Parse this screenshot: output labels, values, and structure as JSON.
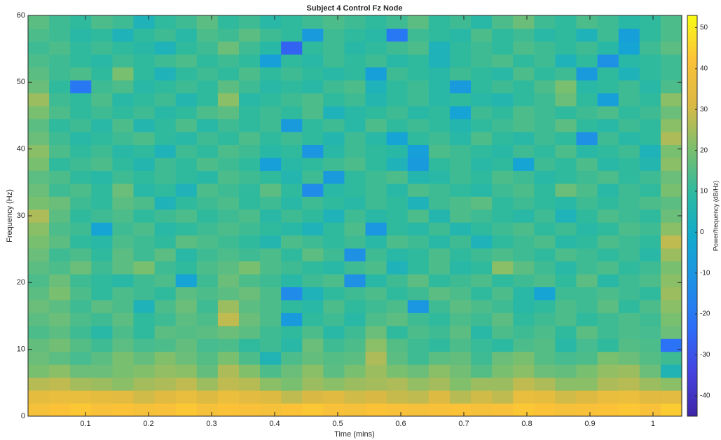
{
  "chart_data": {
    "type": "heatmap",
    "title": "Subject 4 Control Fz Node",
    "x_label": "Time (mins)",
    "y_label": "Frequency (Hz)",
    "colorbar_label": "Power/frequency (dB/Hz)",
    "xlim": [
      0.0089,
      1.0456
    ],
    "ylim": [
      0,
      60
    ],
    "xticks": [
      0.1,
      0.2,
      0.3,
      0.4,
      0.5,
      0.6,
      0.7,
      0.8,
      0.9,
      1
    ],
    "yticks": [
      0,
      10,
      20,
      30,
      40,
      50,
      60
    ],
    "clim": [
      -45,
      53
    ],
    "cticks": [
      -40,
      -30,
      -20,
      -10,
      0,
      10,
      20,
      30,
      40,
      50
    ],
    "colormap": [
      "#3e26a8",
      "#4543e0",
      "#2d6ef8",
      "#1e90e6",
      "#12aacf",
      "#2cbaa0",
      "#7bbf6e",
      "#dbb943",
      "#fbc238",
      "#f9fb15"
    ],
    "z": [
      [
        40,
        42,
        43,
        41,
        42,
        40,
        41,
        43,
        40,
        42,
        41,
        40,
        42,
        43,
        41,
        40,
        42,
        41,
        40,
        41,
        42,
        40,
        41,
        43,
        42,
        40,
        41,
        42,
        43,
        41,
        44
      ],
      [
        35,
        36,
        36,
        35,
        34,
        30,
        33,
        36,
        32,
        37,
        34,
        32,
        28,
        31,
        33,
        30,
        31,
        29,
        28,
        32,
        27,
        30,
        28,
        36,
        35,
        30,
        32,
        36,
        37,
        33,
        34
      ],
      [
        27,
        28,
        25,
        24,
        22,
        25,
        26,
        28,
        24,
        28,
        27,
        22,
        20,
        24,
        22,
        24,
        25,
        26,
        23,
        25,
        21,
        24,
        24,
        28,
        26,
        22,
        22,
        26,
        27,
        24,
        22
      ],
      [
        20,
        22,
        18,
        18,
        20,
        21,
        23,
        22,
        17,
        26,
        21,
        14,
        18,
        22,
        16,
        20,
        24,
        20,
        18,
        22,
        19,
        15,
        20,
        22,
        18,
        17,
        20,
        23,
        24,
        18,
        5
      ],
      [
        18,
        16,
        13,
        16,
        20,
        17,
        21,
        18,
        15,
        20,
        14,
        5,
        14,
        17,
        15,
        16,
        26,
        16,
        12,
        16,
        17,
        12,
        18,
        20,
        15,
        13,
        14,
        20,
        18,
        15,
        12
      ],
      [
        17,
        19,
        15,
        12,
        16,
        13,
        14,
        17,
        13,
        14,
        10,
        12,
        8,
        18,
        12,
        14,
        22,
        15,
        12,
        10,
        14,
        11,
        9,
        14,
        15,
        8,
        13,
        10,
        15,
        14,
        -22
      ],
      [
        14,
        16,
        12,
        8,
        14,
        10,
        16,
        15,
        16,
        18,
        16,
        12,
        10,
        14,
        8,
        12,
        18,
        10,
        14,
        12,
        16,
        8,
        14,
        12,
        14,
        10,
        16,
        12,
        14,
        13,
        18
      ],
      [
        16,
        18,
        14,
        12,
        16,
        10,
        12,
        16,
        14,
        28,
        18,
        14,
        -8,
        10,
        12,
        8,
        14,
        16,
        12,
        10,
        14,
        12,
        16,
        10,
        12,
        14,
        10,
        12,
        14,
        12,
        20
      ],
      [
        18,
        16,
        12,
        16,
        14,
        4,
        14,
        18,
        12,
        24,
        16,
        14,
        10,
        8,
        14,
        10,
        12,
        14,
        -10,
        12,
        16,
        14,
        12,
        8,
        10,
        14,
        12,
        16,
        10,
        14,
        22
      ],
      [
        16,
        20,
        14,
        10,
        14,
        12,
        10,
        16,
        14,
        16,
        18,
        14,
        -14,
        4,
        10,
        12,
        14,
        10,
        12,
        16,
        14,
        10,
        14,
        8,
        -4,
        12,
        12,
        14,
        12,
        10,
        24
      ],
      [
        14,
        18,
        12,
        10,
        8,
        12,
        14,
        -4,
        12,
        18,
        14,
        12,
        8,
        12,
        14,
        -12,
        8,
        12,
        16,
        10,
        12,
        14,
        10,
        12,
        14,
        10,
        16,
        8,
        12,
        14,
        22
      ],
      [
        16,
        14,
        18,
        12,
        16,
        20,
        12,
        10,
        14,
        16,
        20,
        14,
        12,
        10,
        8,
        12,
        14,
        4,
        10,
        14,
        8,
        10,
        22,
        16,
        12,
        8,
        12,
        14,
        10,
        12,
        20
      ],
      [
        18,
        12,
        14,
        10,
        16,
        12,
        16,
        8,
        12,
        14,
        12,
        14,
        10,
        16,
        12,
        -12,
        12,
        8,
        10,
        14,
        10,
        12,
        14,
        12,
        10,
        14,
        12,
        10,
        12,
        8,
        24
      ],
      [
        20,
        16,
        10,
        8,
        14,
        12,
        10,
        16,
        14,
        12,
        10,
        6,
        14,
        12,
        10,
        12,
        8,
        14,
        12,
        8,
        12,
        4,
        10,
        12,
        14,
        8,
        10,
        14,
        12,
        10,
        28
      ],
      [
        22,
        14,
        12,
        -4,
        12,
        14,
        8,
        10,
        12,
        14,
        12,
        10,
        8,
        4,
        10,
        14,
        -10,
        10,
        8,
        12,
        6,
        10,
        12,
        14,
        10,
        12,
        8,
        10,
        14,
        12,
        22
      ],
      [
        26,
        16,
        10,
        12,
        14,
        10,
        12,
        14,
        10,
        12,
        14,
        8,
        12,
        10,
        4,
        12,
        8,
        10,
        14,
        6,
        14,
        12,
        10,
        8,
        12,
        4,
        10,
        14,
        12,
        10,
        18
      ],
      [
        20,
        18,
        12,
        10,
        16,
        14,
        4,
        10,
        12,
        14,
        10,
        12,
        8,
        12,
        10,
        8,
        12,
        10,
        4,
        12,
        14,
        16,
        10,
        12,
        10,
        8,
        12,
        10,
        12,
        14,
        16
      ],
      [
        18,
        12,
        14,
        10,
        18,
        8,
        10,
        4,
        14,
        12,
        10,
        16,
        10,
        -14,
        8,
        10,
        12,
        8,
        14,
        12,
        10,
        8,
        12,
        14,
        10,
        18,
        14,
        8,
        12,
        10,
        20
      ],
      [
        16,
        14,
        10,
        8,
        12,
        10,
        12,
        10,
        8,
        14,
        12,
        10,
        6,
        12,
        -8,
        10,
        12,
        14,
        6,
        8,
        12,
        10,
        14,
        12,
        8,
        10,
        12,
        14,
        10,
        12,
        18
      ],
      [
        20,
        10,
        12,
        14,
        10,
        6,
        12,
        10,
        14,
        12,
        10,
        -6,
        8,
        10,
        12,
        14,
        10,
        4,
        -8,
        10,
        12,
        8,
        10,
        -4,
        12,
        10,
        14,
        8,
        10,
        6,
        22
      ],
      [
        22,
        14,
        10,
        12,
        8,
        10,
        4,
        12,
        10,
        14,
        12,
        8,
        10,
        -10,
        8,
        12,
        10,
        8,
        -6,
        14,
        12,
        10,
        8,
        12,
        10,
        14,
        8,
        10,
        12,
        4,
        20
      ],
      [
        18,
        12,
        8,
        10,
        12,
        14,
        10,
        8,
        12,
        10,
        14,
        10,
        12,
        10,
        6,
        12,
        8,
        -4,
        10,
        12,
        8,
        14,
        10,
        8,
        12,
        10,
        -12,
        12,
        8,
        10,
        26
      ],
      [
        16,
        10,
        12,
        8,
        14,
        6,
        10,
        14,
        8,
        12,
        10,
        12,
        -8,
        10,
        12,
        8,
        14,
        10,
        12,
        10,
        6,
        10,
        12,
        14,
        12,
        16,
        10,
        8,
        12,
        10,
        22
      ],
      [
        20,
        14,
        10,
        12,
        10,
        12,
        8,
        10,
        14,
        16,
        10,
        12,
        10,
        14,
        4,
        8,
        10,
        12,
        8,
        10,
        -4,
        12,
        10,
        14,
        12,
        10,
        12,
        14,
        10,
        12,
        18
      ],
      [
        24,
        12,
        10,
        14,
        8,
        10,
        12,
        6,
        10,
        22,
        8,
        10,
        12,
        14,
        10,
        12,
        6,
        10,
        12,
        8,
        10,
        8,
        6,
        10,
        12,
        18,
        10,
        -6,
        12,
        10,
        22
      ],
      [
        18,
        10,
        -20,
        12,
        14,
        8,
        10,
        12,
        10,
        16,
        12,
        8,
        10,
        8,
        12,
        14,
        4,
        10,
        12,
        8,
        -8,
        10,
        12,
        10,
        14,
        20,
        8,
        10,
        12,
        8,
        14
      ],
      [
        16,
        12,
        14,
        10,
        20,
        10,
        4,
        10,
        12,
        10,
        14,
        10,
        12,
        10,
        8,
        10,
        -6,
        12,
        10,
        8,
        12,
        10,
        8,
        14,
        10,
        12,
        -8,
        10,
        4,
        10,
        12
      ],
      [
        14,
        12,
        10,
        8,
        12,
        10,
        12,
        14,
        10,
        12,
        10,
        -6,
        10,
        8,
        12,
        10,
        12,
        8,
        10,
        4,
        10,
        12,
        14,
        10,
        12,
        4,
        10,
        -12,
        8,
        10,
        12
      ],
      [
        12,
        14,
        10,
        12,
        10,
        8,
        4,
        10,
        12,
        18,
        12,
        8,
        -26,
        10,
        12,
        8,
        10,
        12,
        14,
        4,
        10,
        12,
        10,
        14,
        12,
        10,
        12,
        8,
        -4,
        12,
        16
      ],
      [
        14,
        12,
        8,
        10,
        4,
        10,
        12,
        8,
        14,
        12,
        16,
        12,
        10,
        -8,
        12,
        10,
        8,
        -20,
        12,
        10,
        8,
        14,
        10,
        12,
        8,
        10,
        4,
        12,
        -6,
        10,
        14
      ],
      [
        16,
        12,
        10,
        14,
        12,
        4,
        10,
        12,
        16,
        10,
        12,
        8,
        10,
        12,
        14,
        12,
        10,
        12,
        16,
        10,
        12,
        8,
        14,
        18,
        12,
        10,
        14,
        12,
        8,
        10,
        14
      ]
    ]
  }
}
